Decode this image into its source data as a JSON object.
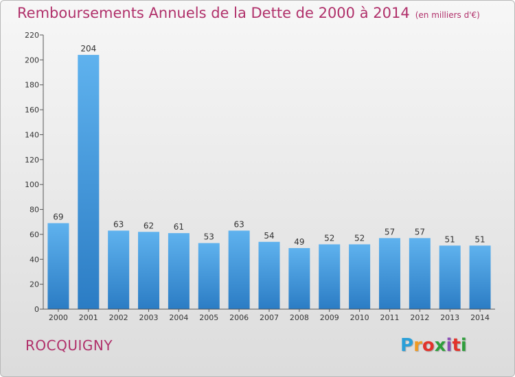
{
  "chart_data": {
    "type": "bar",
    "title": "Remboursements Annuels de la Dette de 2000 à 2014",
    "subtitle": "(en milliers d'€)",
    "categories": [
      "2000",
      "2001",
      "2002",
      "2003",
      "2004",
      "2005",
      "2006",
      "2007",
      "2008",
      "2009",
      "2010",
      "2011",
      "2012",
      "2013",
      "2014"
    ],
    "values": [
      69,
      204,
      63,
      62,
      61,
      53,
      63,
      54,
      49,
      52,
      52,
      57,
      57,
      51,
      51
    ],
    "ylim": [
      0,
      220
    ],
    "yticks": [
      0,
      20,
      40,
      60,
      80,
      100,
      120,
      140,
      160,
      180,
      200,
      220
    ],
    "grid": false,
    "bar_color": "#3f94dc"
  },
  "footer": {
    "place_name": "ROCQUIGNY",
    "logo_letters": [
      "P",
      "r",
      "o",
      "x",
      "i",
      "t",
      "i"
    ],
    "logo_colors": [
      "#2a9fd8",
      "#f09a24",
      "#e2332b",
      "#2f9e3c",
      "#8a4fb5",
      "#e2332b",
      "#2f9e3c"
    ]
  }
}
